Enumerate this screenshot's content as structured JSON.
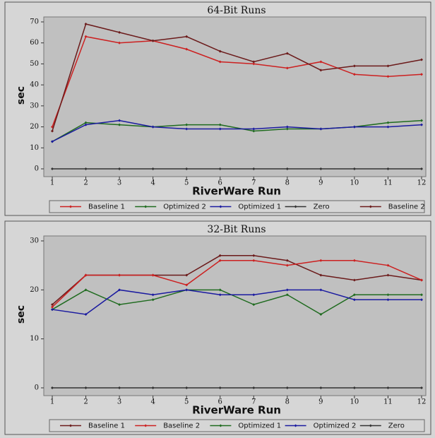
{
  "chart_data": [
    {
      "type": "line",
      "title": "64-Bit Runs",
      "xlabel": "RiverWare Run",
      "ylabel": "sec",
      "x": [
        1,
        2,
        3,
        4,
        5,
        6,
        7,
        8,
        9,
        10,
        11,
        12
      ],
      "xlim": [
        1,
        12
      ],
      "xticks": [
        1,
        2,
        3,
        4,
        5,
        6,
        7,
        8,
        9,
        10,
        11,
        12
      ],
      "ylim": [
        0,
        70
      ],
      "yticks": [
        0,
        10,
        20,
        30,
        40,
        50,
        60,
        70
      ],
      "series": [
        {
          "name": "Baseline 1",
          "color": "#cc2020",
          "values": [
            20,
            63,
            60,
            61,
            57,
            51,
            50,
            48,
            51,
            45,
            44,
            45
          ]
        },
        {
          "name": "Optimized 2",
          "color": "#1f6b1f",
          "values": [
            13,
            22,
            21,
            20,
            21,
            21,
            18,
            19,
            19,
            20,
            22,
            23
          ]
        },
        {
          "name": "Optimized 1",
          "color": "#1a1aa0",
          "values": [
            13,
            21,
            23,
            20,
            19,
            19,
            19,
            20,
            19,
            20,
            20,
            21
          ]
        },
        {
          "name": "Zero",
          "color": "#333333",
          "values": [
            0,
            0,
            0,
            0,
            0,
            0,
            0,
            0,
            0,
            0,
            0,
            0
          ]
        },
        {
          "name": "Baseline 2",
          "color": "#6b1a1a",
          "values": [
            18,
            69,
            65,
            61,
            63,
            56,
            51,
            55,
            47,
            49,
            49,
            52
          ]
        }
      ]
    },
    {
      "type": "line",
      "title": "32-Bit Runs",
      "xlabel": "RiverWare Run",
      "ylabel": "sec",
      "x": [
        1,
        2,
        3,
        4,
        5,
        6,
        7,
        8,
        9,
        10,
        11,
        12
      ],
      "xlim": [
        1,
        12
      ],
      "xticks": [
        1,
        2,
        3,
        4,
        5,
        6,
        7,
        8,
        9,
        10,
        11,
        12
      ],
      "ylim": [
        0,
        30
      ],
      "yticks": [
        0,
        10,
        20,
        30
      ],
      "series": [
        {
          "name": "Baseline 1",
          "color": "#6b1a1a",
          "values": [
            17,
            23,
            23,
            23,
            23,
            27,
            27,
            26,
            23,
            22,
            23,
            22
          ]
        },
        {
          "name": "Baseline 2",
          "color": "#cc2020",
          "values": [
            16.5,
            23,
            23,
            23,
            21,
            26,
            26,
            25,
            26,
            26,
            25,
            22
          ]
        },
        {
          "name": "Optimized 1",
          "color": "#1f6b1f",
          "values": [
            16,
            20,
            17,
            18,
            20,
            20,
            17,
            19,
            15,
            19,
            19,
            19
          ]
        },
        {
          "name": "Optimized 2",
          "color": "#1a1aa0",
          "values": [
            16,
            15,
            20,
            19,
            20,
            19,
            19,
            20,
            20,
            18,
            18,
            18
          ]
        },
        {
          "name": "Zero",
          "color": "#333333",
          "values": [
            0,
            0,
            0,
            0,
            0,
            0,
            0,
            0,
            0,
            0,
            0,
            0
          ]
        }
      ]
    }
  ]
}
